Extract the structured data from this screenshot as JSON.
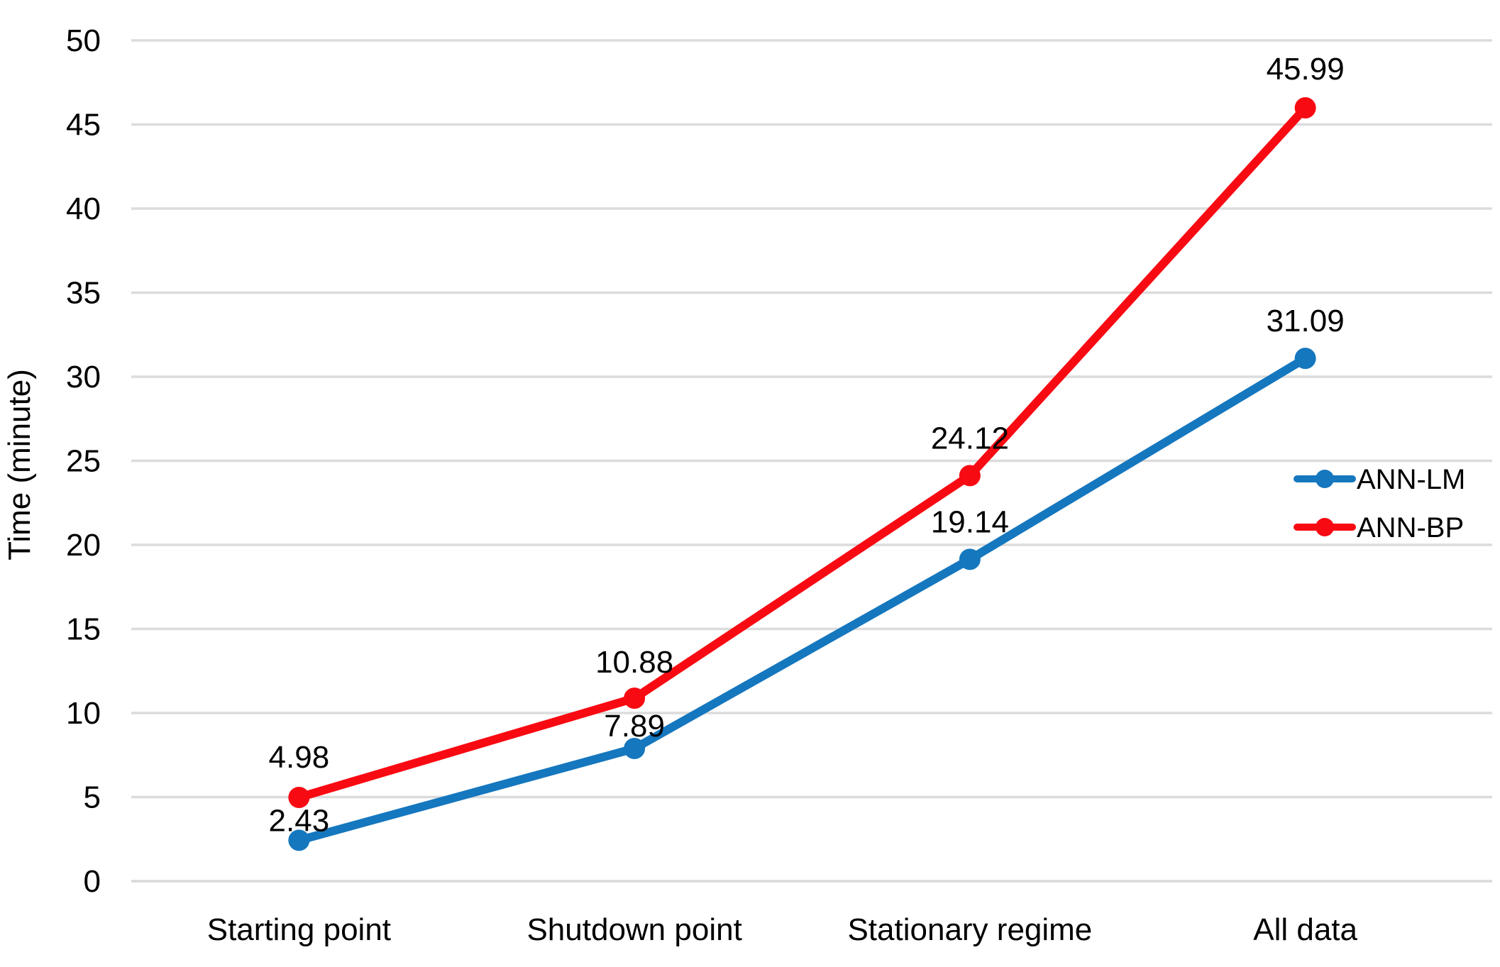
{
  "chart_data": {
    "type": "line",
    "title": "",
    "xlabel": "",
    "ylabel": "Time (minute)",
    "categories": [
      "Starting point",
      "Shutdown point",
      "Stationary regime",
      "All data"
    ],
    "series": [
      {
        "name": "ANN-LM",
        "color": "#1577BE",
        "values": [
          2.43,
          7.89,
          19.14,
          31.09
        ]
      },
      {
        "name": "ANN-BP",
        "color": "#F80A12",
        "values": [
          4.98,
          10.88,
          24.12,
          45.99
        ]
      }
    ],
    "data_labels": {
      "ANN-LM": [
        "2.43",
        "7.89",
        "19.14",
        "31.09"
      ],
      "ANN-BP": [
        "4.98",
        "10.88",
        "24.12",
        "45.99"
      ]
    },
    "ylim": [
      0,
      50
    ],
    "yticks": [
      0,
      5,
      10,
      15,
      20,
      25,
      30,
      35,
      40,
      45,
      50
    ],
    "grid": true,
    "gridline_color": "#DCDCDC",
    "axis_line_color": "#D9D9D9",
    "text_color": "#000000",
    "legend_position": "right",
    "legend": [
      "ANN-LM",
      "ANN-BP"
    ],
    "layout_hints": {
      "label_dy": {
        "ANN-LM": [
          -28,
          -32,
          -53,
          -53
        ],
        "ANN-BP": [
          -57,
          -51,
          -53,
          -55
        ]
      }
    }
  }
}
